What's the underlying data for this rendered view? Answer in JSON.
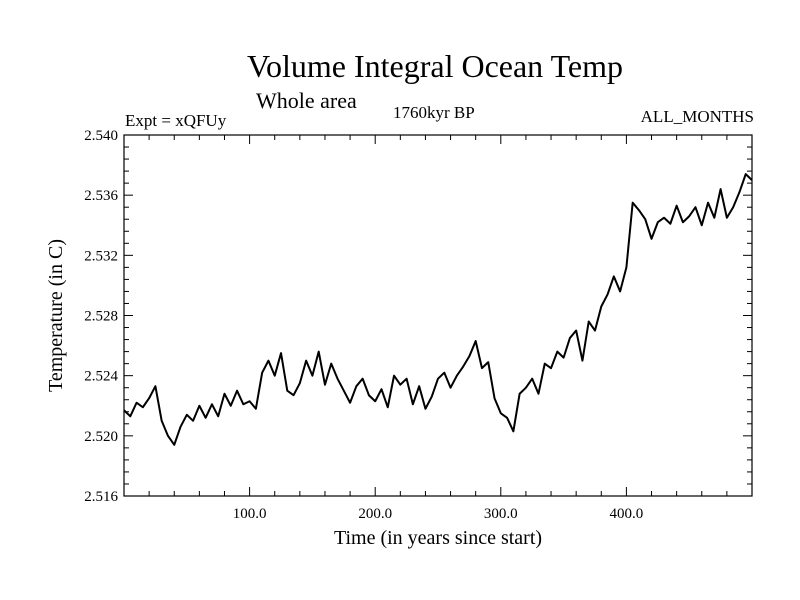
{
  "chart_data": {
    "type": "line",
    "title": "Volume Integral Ocean Temp",
    "subtitle": "Whole area",
    "left_label": "Expt = xQFUy",
    "center_label": "1760kyr BP",
    "right_label": "ALL_MONTHS",
    "xlabel": "Time (in years since start)",
    "ylabel": "Temperature (in C)",
    "xlim": [
      0,
      500
    ],
    "ylim": [
      2.516,
      2.54
    ],
    "x_ticks": [
      100,
      200,
      300,
      400
    ],
    "x_tick_labels": [
      "100.0",
      "200.0",
      "300.0",
      "400.0"
    ],
    "y_ticks": [
      2.516,
      2.52,
      2.524,
      2.528,
      2.532,
      2.536,
      2.54
    ],
    "y_tick_labels": [
      "2.516",
      "2.520",
      "2.524",
      "2.528",
      "2.532",
      "2.536",
      "2.540"
    ],
    "grid": false,
    "series": [
      {
        "name": "Temperature",
        "x": [
          0,
          5,
          10,
          15,
          20,
          25,
          30,
          35,
          40,
          45,
          50,
          55,
          60,
          65,
          70,
          75,
          80,
          85,
          90,
          95,
          100,
          105,
          110,
          115,
          120,
          125,
          130,
          135,
          140,
          145,
          150,
          155,
          160,
          165,
          170,
          175,
          180,
          185,
          190,
          195,
          200,
          205,
          210,
          215,
          220,
          225,
          230,
          235,
          240,
          245,
          250,
          255,
          260,
          265,
          270,
          275,
          280,
          285,
          290,
          295,
          300,
          305,
          310,
          315,
          320,
          325,
          330,
          335,
          340,
          345,
          350,
          355,
          360,
          365,
          370,
          375,
          380,
          385,
          390,
          395,
          400,
          405,
          410,
          415,
          420,
          425,
          430,
          435,
          440,
          445,
          450,
          455,
          460,
          465,
          470,
          475,
          480,
          485,
          490,
          495,
          500
        ],
        "values": [
          2.5217,
          2.5213,
          2.5222,
          2.5219,
          2.5225,
          2.5233,
          2.521,
          2.52,
          2.5194,
          2.5206,
          2.5214,
          2.521,
          2.522,
          2.5212,
          2.5221,
          2.5213,
          2.5228,
          2.522,
          2.523,
          2.5221,
          2.5223,
          2.5218,
          2.5242,
          2.525,
          2.524,
          2.5255,
          2.523,
          2.5227,
          2.5235,
          2.525,
          2.524,
          2.5256,
          2.5234,
          2.5248,
          2.5238,
          2.523,
          2.5222,
          2.5233,
          2.5238,
          2.5227,
          2.5223,
          2.5231,
          2.5219,
          2.524,
          2.5234,
          2.5238,
          2.5221,
          2.5233,
          2.5218,
          2.5226,
          2.5238,
          2.5242,
          2.5232,
          2.524,
          2.5246,
          2.5253,
          2.5263,
          2.5245,
          2.5249,
          2.5225,
          2.5215,
          2.5212,
          2.5203,
          2.5228,
          2.5232,
          2.5238,
          2.5228,
          2.5248,
          2.5245,
          2.5256,
          2.5252,
          2.5265,
          2.527,
          2.525,
          2.5276,
          2.527,
          2.5286,
          2.5294,
          2.5306,
          2.5296,
          2.5312,
          2.5355,
          2.535,
          2.5344,
          2.5331,
          2.5342,
          2.5345,
          2.5341,
          2.5353,
          2.5342,
          2.5346,
          2.5352,
          2.534,
          2.5355,
          2.5345,
          2.5364,
          2.5345,
          2.5352,
          2.5362,
          2.5374,
          2.537
        ]
      }
    ]
  }
}
